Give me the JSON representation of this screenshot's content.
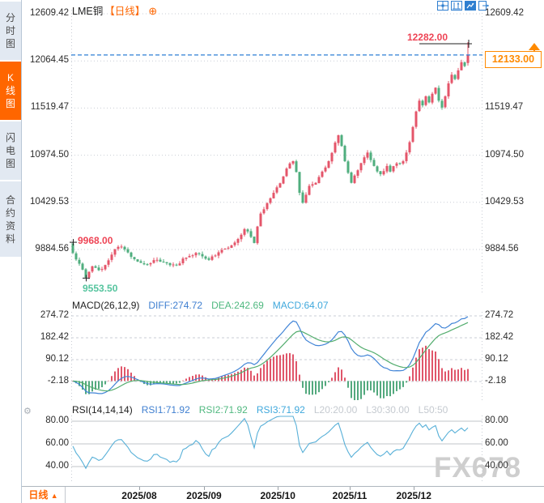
{
  "sidebar": {
    "tabs": [
      {
        "label": "分时图",
        "active": false
      },
      {
        "label": "K线图",
        "active": true
      },
      {
        "label": "闪电图",
        "active": false
      },
      {
        "label": "合约资料",
        "active": false
      }
    ]
  },
  "header": {
    "title": "LME铜",
    "period_tag": "【日线】",
    "add_icon": "⊕"
  },
  "toolbar": {
    "icons": [
      "crosshair-icon",
      "axis-scale-icon",
      "goto-latest-icon",
      "exit-chart-icon"
    ]
  },
  "main": {
    "y_labels": [
      "12609.42",
      "12064.45",
      "11519.47",
      "10974.50",
      "10429.53",
      "9884.56"
    ]
  },
  "annotations": {
    "session_high": "12282.00",
    "left_high": "9968.00",
    "period_low": "9553.50",
    "current_price": "12133.00"
  },
  "macd": {
    "header": {
      "name": "MACD(26,12,9)",
      "diff": "DIFF:274.72",
      "dea": "DEA:242.69",
      "macd": "MACD:64.07"
    },
    "y_labels": [
      "274.72",
      "182.42",
      "90.12",
      "-2.18"
    ]
  },
  "rsi": {
    "header": {
      "name": "RSI(14,14,14)",
      "rsi1": "RSI1:71.92",
      "rsi2": "RSI2:71.92",
      "rsi3": "RSI3:71.92",
      "l20": "L20:20.00",
      "l30": "L30:30.00",
      "l50": "L50:50"
    },
    "y_labels": [
      "80.00",
      "60.00",
      "40.00"
    ]
  },
  "bottom": {
    "period_label": "日线",
    "period_arrow": "▲"
  },
  "watermark": "FX678",
  "colors": {
    "up": "#e4556a",
    "down": "#4fae7e",
    "diff_line": "#4285d7",
    "dea_line": "#53ad6e",
    "hist_up": "#e0566a",
    "hist_down": "#53a97e",
    "rsi_line": "#58b0d8",
    "grid": "#c9cdd5",
    "rsi_grid": "#c0c4ca",
    "price_line": "#2e7fd6",
    "accent": "#ff6600",
    "marker_orange": "#ff8a00",
    "pointer_black": "#222222"
  },
  "chart_data": {
    "type": "candlestick",
    "instrument": "LME铜",
    "period": "日线",
    "price_axis": [
      12609.42,
      12064.45,
      11519.47,
      10974.5,
      10429.53,
      9884.56
    ],
    "current_price": 12133.0,
    "session_high": 12282.0,
    "left_edge_high": 9968.0,
    "period_low": 9553.5,
    "candle_count": 123,
    "noise": 38,
    "wick": 34,
    "close_anchors": [
      [
        0,
        9845
      ],
      [
        2,
        9720
      ],
      [
        4,
        9560
      ],
      [
        6,
        9690
      ],
      [
        8,
        9645
      ],
      [
        10,
        9705
      ],
      [
        12,
        9825
      ],
      [
        14,
        9915
      ],
      [
        16,
        9885
      ],
      [
        18,
        9800
      ],
      [
        20,
        9745
      ],
      [
        23,
        9710
      ],
      [
        26,
        9765
      ],
      [
        29,
        9725
      ],
      [
        32,
        9705
      ],
      [
        35,
        9790
      ],
      [
        38,
        9845
      ],
      [
        40,
        9805
      ],
      [
        42,
        9765
      ],
      [
        44,
        9815
      ],
      [
        46,
        9880
      ],
      [
        48,
        9905
      ],
      [
        50,
        9965
      ],
      [
        52,
        10055
      ],
      [
        53,
        10120
      ],
      [
        55,
        10030
      ],
      [
        56,
        9960
      ],
      [
        57,
        10150
      ],
      [
        58,
        10300
      ],
      [
        60,
        10420
      ],
      [
        62,
        10540
      ],
      [
        64,
        10650
      ],
      [
        66,
        10820
      ],
      [
        68,
        10905
      ],
      [
        69,
        10780
      ],
      [
        70,
        10540
      ],
      [
        71,
        10425
      ],
      [
        73,
        10620
      ],
      [
        75,
        10655
      ],
      [
        77,
        10785
      ],
      [
        79,
        10905
      ],
      [
        81,
        11120
      ],
      [
        82,
        11205
      ],
      [
        83,
        11080
      ],
      [
        84,
        10905
      ],
      [
        86,
        10655
      ],
      [
        88,
        10800
      ],
      [
        90,
        10950
      ],
      [
        91,
        11005
      ],
      [
        93,
        10850
      ],
      [
        95,
        10755
      ],
      [
        97,
        10850
      ],
      [
        98,
        10785
      ],
      [
        100,
        10880
      ],
      [
        102,
        10905
      ],
      [
        103,
        11005
      ],
      [
        104,
        11125
      ],
      [
        105,
        11300
      ],
      [
        106,
        11480
      ],
      [
        107,
        11605
      ],
      [
        108,
        11550
      ],
      [
        109,
        11655
      ],
      [
        110,
        11585
      ],
      [
        111,
        11685
      ],
      [
        112,
        11755
      ],
      [
        113,
        11605
      ],
      [
        114,
        11525
      ],
      [
        115,
        11655
      ],
      [
        116,
        11805
      ],
      [
        117,
        11905
      ],
      [
        118,
        11855
      ],
      [
        119,
        11955
      ],
      [
        120,
        12050
      ],
      [
        121,
        12005
      ],
      [
        122,
        12133
      ]
    ],
    "overrides": {
      "0": {
        "open": 9952,
        "high": 9968
      },
      "4": {
        "low": 9553.5
      },
      "122": {
        "open": 12040,
        "high": 12282,
        "low": 12010,
        "close": 12133
      }
    },
    "x_ticks": [
      {
        "label": "2025/08",
        "index": 20.5
      },
      {
        "label": "2025/09",
        "index": 40.5
      },
      {
        "label": "2025/10",
        "index": 63.3
      },
      {
        "label": "2025/11",
        "index": 85.5
      },
      {
        "label": "2025/12",
        "index": 105.3
      }
    ],
    "macd": {
      "params": [
        26,
        12,
        9
      ],
      "diff": 274.72,
      "dea": 242.69,
      "hist": 64.07,
      "axis": [
        274.72,
        182.42,
        90.12,
        -2.18
      ]
    },
    "rsi": {
      "params": [
        14,
        14,
        14
      ],
      "rsi1": 71.92,
      "rsi2": 71.92,
      "rsi3": 71.92,
      "levels": {
        "l20": 20.0,
        "l30": 30.0,
        "l50": 50.0
      },
      "axis": [
        80,
        60,
        40
      ]
    }
  }
}
